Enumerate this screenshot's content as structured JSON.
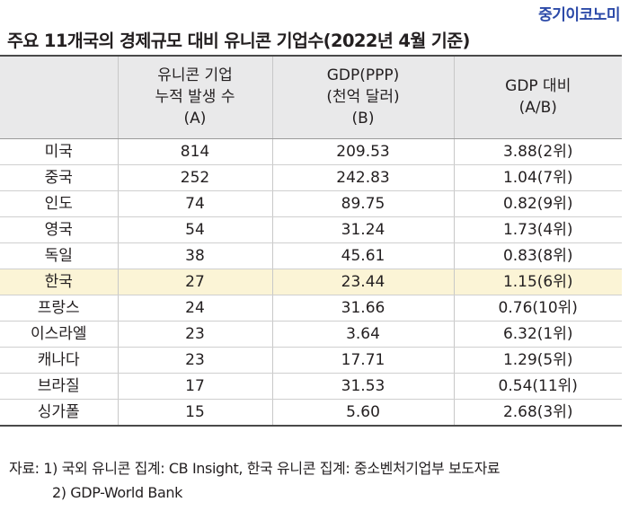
{
  "brand": "중기이코노미",
  "title": "주요 11개국의 경제규모 대비 유니콘 기업수(2022년 4월 기준)",
  "table": {
    "headers": [
      {
        "lines": [
          ""
        ]
      },
      {
        "lines": [
          "유니콘 기업",
          "누적 발생 수",
          "(A)"
        ]
      },
      {
        "lines": [
          "GDP(PPP)",
          "(천억 달러)",
          "(B)"
        ]
      },
      {
        "lines": [
          "GDP 대비",
          "(A/B)"
        ]
      }
    ],
    "rows": [
      {
        "country": "미국",
        "unicorns": "814",
        "gdp": "209.53",
        "ratio": "3.88(2위)",
        "highlight": false
      },
      {
        "country": "중국",
        "unicorns": "252",
        "gdp": "242.83",
        "ratio": "1.04(7위)",
        "highlight": false
      },
      {
        "country": "인도",
        "unicorns": "74",
        "gdp": "89.75",
        "ratio": "0.82(9위)",
        "highlight": false
      },
      {
        "country": "영국",
        "unicorns": "54",
        "gdp": "31.24",
        "ratio": "1.73(4위)",
        "highlight": false
      },
      {
        "country": "독일",
        "unicorns": "38",
        "gdp": "45.61",
        "ratio": "0.83(8위)",
        "highlight": false
      },
      {
        "country": "한국",
        "unicorns": "27",
        "gdp": "23.44",
        "ratio": "1.15(6위)",
        "highlight": true
      },
      {
        "country": "프랑스",
        "unicorns": "24",
        "gdp": "31.66",
        "ratio": "0.76(10위)",
        "highlight": false
      },
      {
        "country": "이스라엘",
        "unicorns": "23",
        "gdp": "3.64",
        "ratio": "6.32(1위)",
        "highlight": false
      },
      {
        "country": "캐나다",
        "unicorns": "23",
        "gdp": "17.71",
        "ratio": "1.29(5위)",
        "highlight": false
      },
      {
        "country": "브라질",
        "unicorns": "17",
        "gdp": "31.53",
        "ratio": "0.54(11위)",
        "highlight": false
      },
      {
        "country": "싱가폴",
        "unicorns": "15",
        "gdp": "5.60",
        "ratio": "2.68(3위)",
        "highlight": false
      }
    ]
  },
  "notes": {
    "line1": "자료: 1) 국외 유니콘 집계: CB Insight, 한국 유니콘 집계: 중소벤처기업부 보도자료",
    "line2": "2) GDP-World Bank"
  },
  "colors": {
    "brand": "#2c4aa8",
    "header_bg": "#e9e9ea",
    "highlight_bg": "#fbf4d6"
  }
}
